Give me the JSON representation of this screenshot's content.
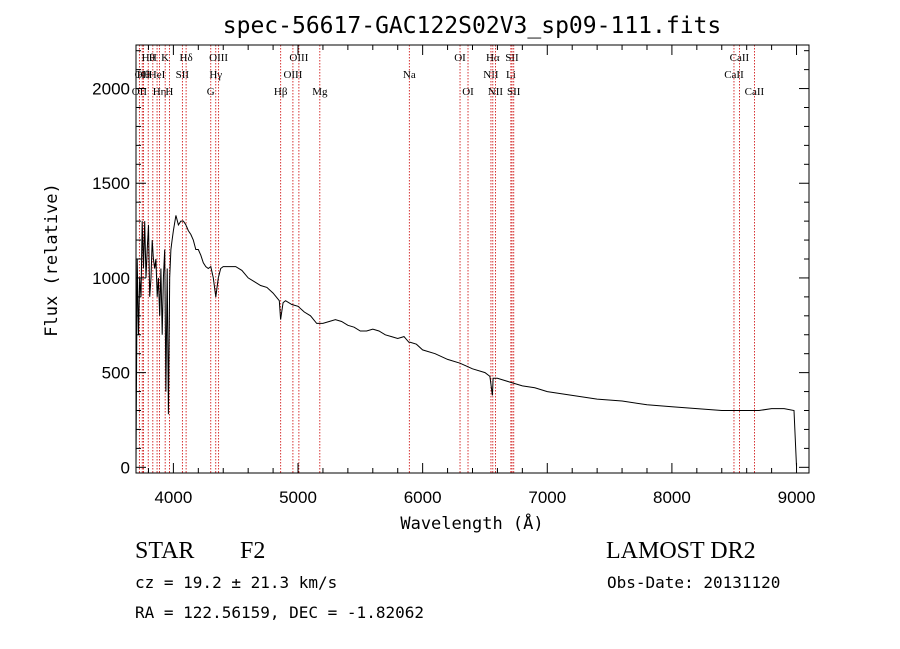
{
  "chart_data": {
    "type": "line",
    "title": "spec-56617-GAC122S02V3_sp09-111.fits",
    "xlabel": "Wavelength (Å)",
    "ylabel": "Flux (relative)",
    "xlim": [
      3700,
      9100
    ],
    "ylim": [
      -30,
      2230
    ],
    "xticks": [
      4000,
      5000,
      6000,
      7000,
      8000,
      9000
    ],
    "yticks": [
      0,
      500,
      1000,
      1500,
      2000
    ],
    "grid": false,
    "line_color": "#000000",
    "marker_color": "#cc0000",
    "series": [
      {
        "x": [
          3700,
          3710,
          3720,
          3730,
          3740,
          3750,
          3760,
          3770,
          3780,
          3790,
          3800,
          3810,
          3820,
          3830,
          3840,
          3850,
          3860,
          3870,
          3880,
          3890,
          3900,
          3910,
          3920,
          3930,
          3940,
          3950,
          3960,
          3970,
          3980,
          3990,
          4000,
          4020,
          4040,
          4060,
          4080,
          4100,
          4120,
          4140,
          4160,
          4180,
          4200,
          4220,
          4240,
          4260,
          4280,
          4300,
          4320,
          4340,
          4360,
          4380,
          4400,
          4450,
          4500,
          4550,
          4600,
          4650,
          4700,
          4750,
          4800,
          4850,
          4860,
          4880,
          4900,
          4950,
          5000,
          5050,
          5100,
          5150,
          5170,
          5200,
          5250,
          5300,
          5350,
          5400,
          5450,
          5500,
          5550,
          5600,
          5650,
          5700,
          5750,
          5800,
          5850,
          5890,
          5900,
          5950,
          6000,
          6100,
          6200,
          6300,
          6400,
          6500,
          6540,
          6560,
          6565,
          6580,
          6600,
          6700,
          6800,
          6900,
          7000,
          7200,
          7400,
          7600,
          7800,
          8000,
          8200,
          8400,
          8500,
          8540,
          8600,
          8700,
          8800,
          8900,
          8980,
          9000
        ],
        "y": [
          5,
          1100,
          700,
          1000,
          900,
          1300,
          1050,
          1300,
          1000,
          1150,
          1280,
          900,
          1000,
          1200,
          1100,
          1050,
          1100,
          900,
          1000,
          800,
          1050,
          700,
          1000,
          1150,
          400,
          1050,
          280,
          1000,
          1150,
          1200,
          1250,
          1330,
          1280,
          1300,
          1300,
          1280,
          1250,
          1230,
          1200,
          1150,
          1150,
          1120,
          1080,
          1060,
          1050,
          1060,
          1000,
          900,
          1000,
          1050,
          1060,
          1060,
          1060,
          1040,
          1000,
          980,
          960,
          950,
          920,
          880,
          780,
          870,
          880,
          860,
          850,
          820,
          800,
          760,
          760,
          760,
          770,
          780,
          770,
          750,
          740,
          720,
          720,
          730,
          720,
          700,
          690,
          680,
          690,
          660,
          660,
          650,
          620,
          600,
          570,
          550,
          520,
          500,
          480,
          380,
          470,
          470,
          470,
          450,
          430,
          420,
          400,
          380,
          360,
          350,
          330,
          320,
          310,
          300,
          300,
          300,
          300,
          300,
          310,
          310,
          300,
          5
        ]
      }
    ],
    "line_markers": [
      {
        "wl": 3727,
        "row": 2,
        "label": "OII"
      },
      {
        "wl": 3750,
        "row": 1,
        "label": "OII"
      },
      {
        "wl": 3760,
        "row": 1,
        "label": "Hθ"
      },
      {
        "wl": 3798,
        "row": 0,
        "label": "Hθ"
      },
      {
        "wl": 3835,
        "row": 0,
        "label": "H"
      },
      {
        "wl": 3869,
        "row": 1,
        "label": "HeI"
      },
      {
        "wl": 3889,
        "row": 2,
        "label": "Hη"
      },
      {
        "wl": 3934,
        "row": 0,
        "label": "K"
      },
      {
        "wl": 3968,
        "row": 2,
        "label": "H"
      },
      {
        "wl": 4072,
        "row": 1,
        "label": "SII"
      },
      {
        "wl": 4102,
        "row": 0,
        "label": "Hδ"
      },
      {
        "wl": 4300,
        "row": 2,
        "label": "G"
      },
      {
        "wl": 4340,
        "row": 1,
        "label": "Hγ"
      },
      {
        "wl": 4363,
        "row": 0,
        "label": "OIII"
      },
      {
        "wl": 4861,
        "row": 2,
        "label": "Hβ"
      },
      {
        "wl": 4959,
        "row": 1,
        "label": "OIII"
      },
      {
        "wl": 5007,
        "row": 0,
        "label": "OIII"
      },
      {
        "wl": 5175,
        "row": 2,
        "label": "Mg"
      },
      {
        "wl": 5893,
        "row": 1,
        "label": "Na"
      },
      {
        "wl": 6300,
        "row": 0,
        "label": "OI"
      },
      {
        "wl": 6364,
        "row": 2,
        "label": "OI"
      },
      {
        "wl": 6548,
        "row": 1,
        "label": "NII"
      },
      {
        "wl": 6563,
        "row": 0,
        "label": "Hα"
      },
      {
        "wl": 6584,
        "row": 2,
        "label": "NII"
      },
      {
        "wl": 6708,
        "row": 1,
        "label": "Li"
      },
      {
        "wl": 6717,
        "row": 0,
        "label": "SII"
      },
      {
        "wl": 6731,
        "row": 2,
        "label": "SII"
      },
      {
        "wl": 8498,
        "row": 1,
        "label": "CaII"
      },
      {
        "wl": 8542,
        "row": 0,
        "label": "CaII"
      },
      {
        "wl": 8662,
        "row": 2,
        "label": "CaII"
      }
    ]
  },
  "info": {
    "object_type": "STAR",
    "subclass": "F2",
    "cz": "cz = 19.2 ± 21.3 km/s",
    "coords": "RA = 122.56159, DEC =  -1.82062",
    "survey": "LAMOST DR2",
    "obs_date": "Obs-Date: 20131120"
  }
}
